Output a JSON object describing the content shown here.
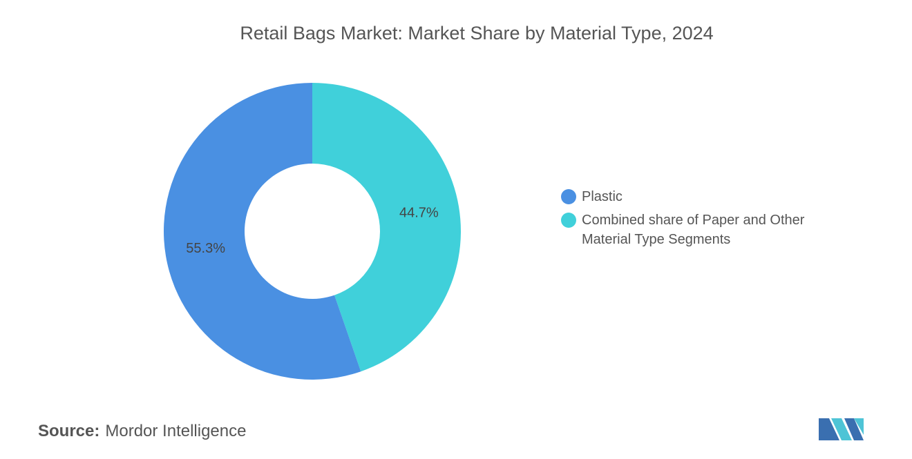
{
  "chart_data": {
    "type": "pie",
    "donut": true,
    "title": "Retail Bags Market: Market Share by Material Type, 2024",
    "categories": [
      "Plastic",
      "Combined share of Paper and Other Material Type Segments"
    ],
    "values": [
      55.3,
      44.7
    ],
    "value_labels": [
      "55.3%",
      "44.7%"
    ],
    "colors": [
      "#4a90e2",
      "#40d0da"
    ],
    "legend": "right",
    "source_label": "Source:",
    "source": "Mordor Intelligence"
  }
}
